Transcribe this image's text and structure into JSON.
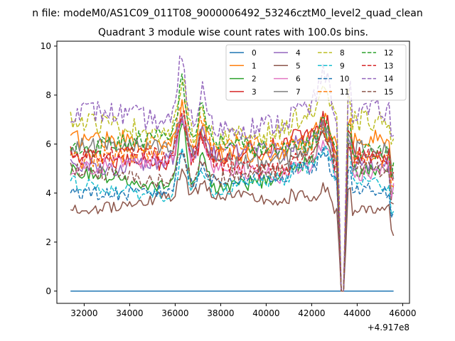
{
  "figure": {
    "suptitle": "n file: modeM0/AS1C09_011T08_9000006492_53246cztM0_level2_quad_clean"
  },
  "chart_data": {
    "type": "line",
    "title": "Quadrant 3 module wise count rates with 100.0s bins.",
    "xlabel": "",
    "ylabel": "",
    "x_offset_label": "+4.917e8",
    "xlim": [
      30800,
      46300
    ],
    "ylim": [
      -0.5,
      10.2
    ],
    "x_ticks": [
      32000,
      34000,
      36000,
      38000,
      40000,
      42000,
      44000,
      46000
    ],
    "x_tick_labels": [
      "32000",
      "34000",
      "36000",
      "38000",
      "40000",
      "42000",
      "44000",
      "46000"
    ],
    "y_ticks": [
      0,
      2,
      4,
      6,
      8,
      10
    ],
    "y_tick_labels": [
      "0",
      "2",
      "4",
      "6",
      "8",
      "10"
    ],
    "x_start": 31400,
    "x_end": 45600,
    "bin": 100,
    "grid": false,
    "legend_placement": "top-right",
    "legend_columns": 4,
    "series": [
      {
        "name": "0",
        "color": "#1f77b4",
        "dash": "solid",
        "base": 0.0,
        "spike": 0.0
      },
      {
        "name": "1",
        "color": "#ff7f0e",
        "dash": "solid",
        "base": 5.9,
        "spike": 1.6
      },
      {
        "name": "2",
        "color": "#2ca02c",
        "dash": "solid",
        "base": 4.6,
        "spike": 2.6
      },
      {
        "name": "3",
        "color": "#d62728",
        "dash": "solid",
        "base": 5.6,
        "spike": 1.6
      },
      {
        "name": "4",
        "color": "#9467bd",
        "dash": "solid",
        "base": 5.4,
        "spike": 1.8
      },
      {
        "name": "5",
        "color": "#8c564b",
        "dash": "solid",
        "base": 3.6,
        "spike": 0.9
      },
      {
        "name": "6",
        "color": "#e377c2",
        "dash": "solid",
        "base": 5.0,
        "spike": 2.0
      },
      {
        "name": "7",
        "color": "#7f7f7f",
        "dash": "solid",
        "base": 5.6,
        "spike": 1.6
      },
      {
        "name": "8",
        "color": "#bcbd22",
        "dash": "dashed",
        "base": 6.6,
        "spike": 2.2
      },
      {
        "name": "9",
        "color": "#17becf",
        "dash": "dashed",
        "base": 4.3,
        "spike": 1.6
      },
      {
        "name": "10",
        "color": "#1f77b4",
        "dash": "dashed",
        "base": 4.3,
        "spike": 1.5
      },
      {
        "name": "11",
        "color": "#ff7f0e",
        "dash": "dashed",
        "base": 5.7,
        "spike": 1.8
      },
      {
        "name": "12",
        "color": "#2ca02c",
        "dash": "dashed",
        "base": 5.9,
        "spike": 2.3
      },
      {
        "name": "13",
        "color": "#d62728",
        "dash": "dashed",
        "base": 5.3,
        "spike": 1.9
      },
      {
        "name": "14",
        "color": "#9467bd",
        "dash": "dashed",
        "base": 7.0,
        "spike": 2.7
      },
      {
        "name": "15",
        "color": "#8c564b",
        "dash": "dashed",
        "base": 4.8,
        "spike": 1.4
      }
    ]
  }
}
